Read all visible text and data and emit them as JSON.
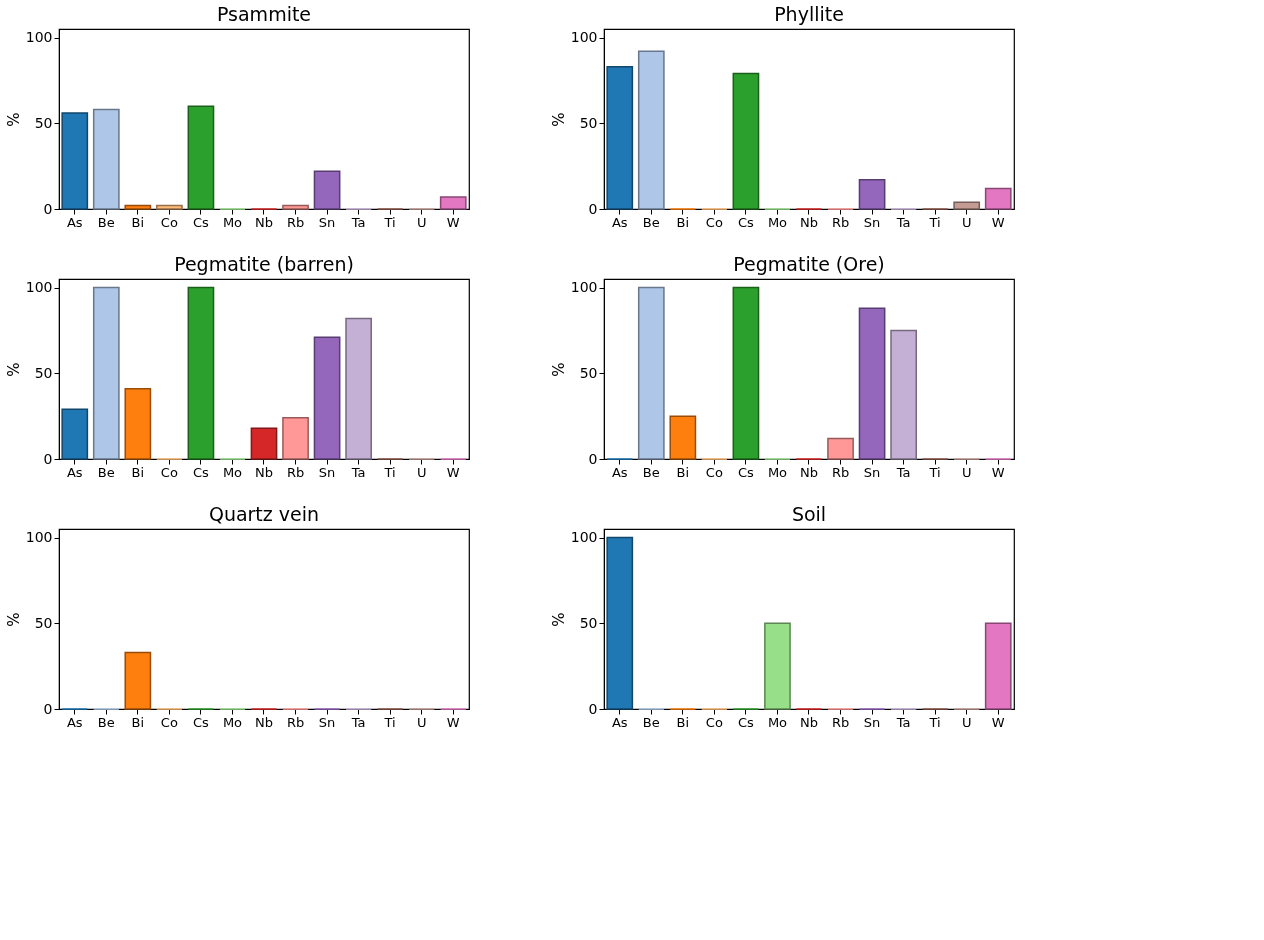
{
  "chart_data": [
    {
      "type": "bar",
      "title": "Psammite",
      "ylabel": "%",
      "categories": [
        "As",
        "Be",
        "Bi",
        "Co",
        "Cs",
        "Mo",
        "Nb",
        "Rb",
        "Sn",
        "Ta",
        "Ti",
        "U",
        "W"
      ],
      "values": [
        56,
        58,
        2,
        2,
        60,
        0,
        0,
        2,
        22,
        0,
        0,
        0,
        7
      ],
      "colors": [
        "#1f77b4",
        "#aec7e8",
        "#ff7f0e",
        "#ffbb78",
        "#2ca02c",
        "#98df8a",
        "#d62728",
        "#ff9896",
        "#9467bd",
        "#c5b0d5",
        "#8c564b",
        "#c49c94",
        "#e377c2"
      ],
      "ylim": [
        0,
        105
      ],
      "yticks": [
        0,
        50,
        100
      ],
      "grid": false
    },
    {
      "type": "bar",
      "title": "Phyllite",
      "ylabel": "%",
      "categories": [
        "As",
        "Be",
        "Bi",
        "Co",
        "Cs",
        "Mo",
        "Nb",
        "Rb",
        "Sn",
        "Ta",
        "Ti",
        "U",
        "W"
      ],
      "values": [
        83,
        92,
        0,
        0,
        79,
        0,
        0,
        0,
        17,
        0,
        0,
        4,
        12
      ],
      "colors": [
        "#1f77b4",
        "#aec7e8",
        "#ff7f0e",
        "#ffbb78",
        "#2ca02c",
        "#98df8a",
        "#d62728",
        "#ff9896",
        "#9467bd",
        "#c5b0d5",
        "#8c564b",
        "#c49c94",
        "#e377c2"
      ],
      "ylim": [
        0,
        105
      ],
      "yticks": [
        0,
        50,
        100
      ],
      "grid": false
    },
    {
      "type": "bar",
      "title": "Pegmatite (barren)",
      "ylabel": "%",
      "categories": [
        "As",
        "Be",
        "Bi",
        "Co",
        "Cs",
        "Mo",
        "Nb",
        "Rb",
        "Sn",
        "Ta",
        "Ti",
        "U",
        "W"
      ],
      "values": [
        29,
        100,
        41,
        0,
        100,
        0,
        18,
        24,
        71,
        82,
        0,
        0,
        0
      ],
      "colors": [
        "#1f77b4",
        "#aec7e8",
        "#ff7f0e",
        "#ffbb78",
        "#2ca02c",
        "#98df8a",
        "#d62728",
        "#ff9896",
        "#9467bd",
        "#c5b0d5",
        "#8c564b",
        "#c49c94",
        "#e377c2"
      ],
      "ylim": [
        0,
        105
      ],
      "yticks": [
        0,
        50,
        100
      ],
      "grid": false
    },
    {
      "type": "bar",
      "title": "Pegmatite (Ore)",
      "ylabel": "%",
      "categories": [
        "As",
        "Be",
        "Bi",
        "Co",
        "Cs",
        "Mo",
        "Nb",
        "Rb",
        "Sn",
        "Ta",
        "Ti",
        "U",
        "W"
      ],
      "values": [
        0,
        100,
        25,
        0,
        100,
        0,
        0,
        12,
        88,
        75,
        0,
        0,
        0
      ],
      "colors": [
        "#1f77b4",
        "#aec7e8",
        "#ff7f0e",
        "#ffbb78",
        "#2ca02c",
        "#98df8a",
        "#d62728",
        "#ff9896",
        "#9467bd",
        "#c5b0d5",
        "#8c564b",
        "#c49c94",
        "#e377c2"
      ],
      "ylim": [
        0,
        105
      ],
      "yticks": [
        0,
        50,
        100
      ],
      "grid": false
    },
    {
      "type": "bar",
      "title": "Quartz vein",
      "ylabel": "%",
      "categories": [
        "As",
        "Be",
        "Bi",
        "Co",
        "Cs",
        "Mo",
        "Nb",
        "Rb",
        "Sn",
        "Ta",
        "Ti",
        "U",
        "W"
      ],
      "values": [
        0,
        0,
        33,
        0,
        0,
        0,
        0,
        0,
        0,
        0,
        0,
        0,
        0
      ],
      "colors": [
        "#1f77b4",
        "#aec7e8",
        "#ff7f0e",
        "#ffbb78",
        "#2ca02c",
        "#98df8a",
        "#d62728",
        "#ff9896",
        "#9467bd",
        "#c5b0d5",
        "#8c564b",
        "#c49c94",
        "#e377c2"
      ],
      "ylim": [
        0,
        105
      ],
      "yticks": [
        0,
        50,
        100
      ],
      "grid": false
    },
    {
      "type": "bar",
      "title": "Soil",
      "ylabel": "%",
      "categories": [
        "As",
        "Be",
        "Bi",
        "Co",
        "Cs",
        "Mo",
        "Nb",
        "Rb",
        "Sn",
        "Ta",
        "Ti",
        "U",
        "W"
      ],
      "values": [
        100,
        0,
        0,
        0,
        0,
        50,
        0,
        0,
        0,
        0,
        0,
        0,
        50
      ],
      "colors": [
        "#1f77b4",
        "#aec7e8",
        "#ff7f0e",
        "#ffbb78",
        "#2ca02c",
        "#98df8a",
        "#d62728",
        "#ff9896",
        "#9467bd",
        "#c5b0d5",
        "#8c564b",
        "#c49c94",
        "#e377c2"
      ],
      "ylim": [
        0,
        105
      ],
      "yticks": [
        0,
        50,
        100
      ],
      "grid": false
    }
  ]
}
